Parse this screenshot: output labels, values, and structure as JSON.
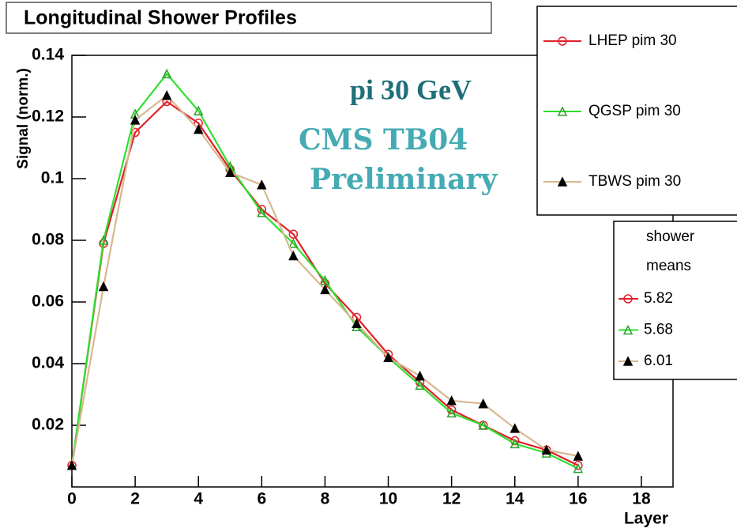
{
  "chart_data": {
    "type": "line",
    "title": "Longitudinal Shower Profiles",
    "x_label": "Layer",
    "y_label": "Signal (norm.)",
    "annotations": [
      "pi 30 GeV",
      "CMS TB04",
      "Preliminary"
    ],
    "x": [
      0,
      1,
      2,
      3,
      4,
      5,
      6,
      7,
      8,
      9,
      10,
      11,
      12,
      13,
      14,
      15,
      16
    ],
    "series": [
      {
        "name": "LHEP pim 30",
        "color": "#e0202a",
        "marker": "circle",
        "marker_color": "#e0202a",
        "mean": 5.82,
        "values": [
          0.007,
          0.079,
          0.115,
          0.125,
          0.118,
          0.103,
          0.09,
          0.082,
          0.066,
          0.055,
          0.043,
          0.034,
          0.025,
          0.02,
          0.015,
          0.012,
          0.007
        ]
      },
      {
        "name": "QGSP pim 30",
        "color": "#2ee02e",
        "marker": "triangle-open",
        "marker_color": "#2aa02a",
        "mean": 5.68,
        "values": [
          0.007,
          0.08,
          0.121,
          0.134,
          0.122,
          0.104,
          0.089,
          0.079,
          0.067,
          0.052,
          0.042,
          0.033,
          0.024,
          0.02,
          0.014,
          0.011,
          0.006
        ]
      },
      {
        "name": "TBWS pim 30",
        "color": "#d8b890",
        "marker": "triangle-filled",
        "marker_color": "#000000",
        "mean": 6.01,
        "values": [
          0.007,
          0.065,
          0.119,
          0.127,
          0.116,
          0.102,
          0.098,
          0.075,
          0.064,
          0.053,
          0.042,
          0.036,
          0.028,
          0.027,
          0.019,
          0.012,
          0.01
        ]
      }
    ],
    "means_legend_title": [
      "shower",
      "means"
    ],
    "xlim": [
      0,
      19
    ],
    "ylim": [
      0,
      0.14
    ],
    "xticks": [
      0,
      2,
      4,
      6,
      8,
      10,
      12,
      14,
      16,
      18
    ],
    "yticks": [
      0.02,
      0.04,
      0.06,
      0.08,
      0.1,
      0.12,
      0.14
    ]
  }
}
